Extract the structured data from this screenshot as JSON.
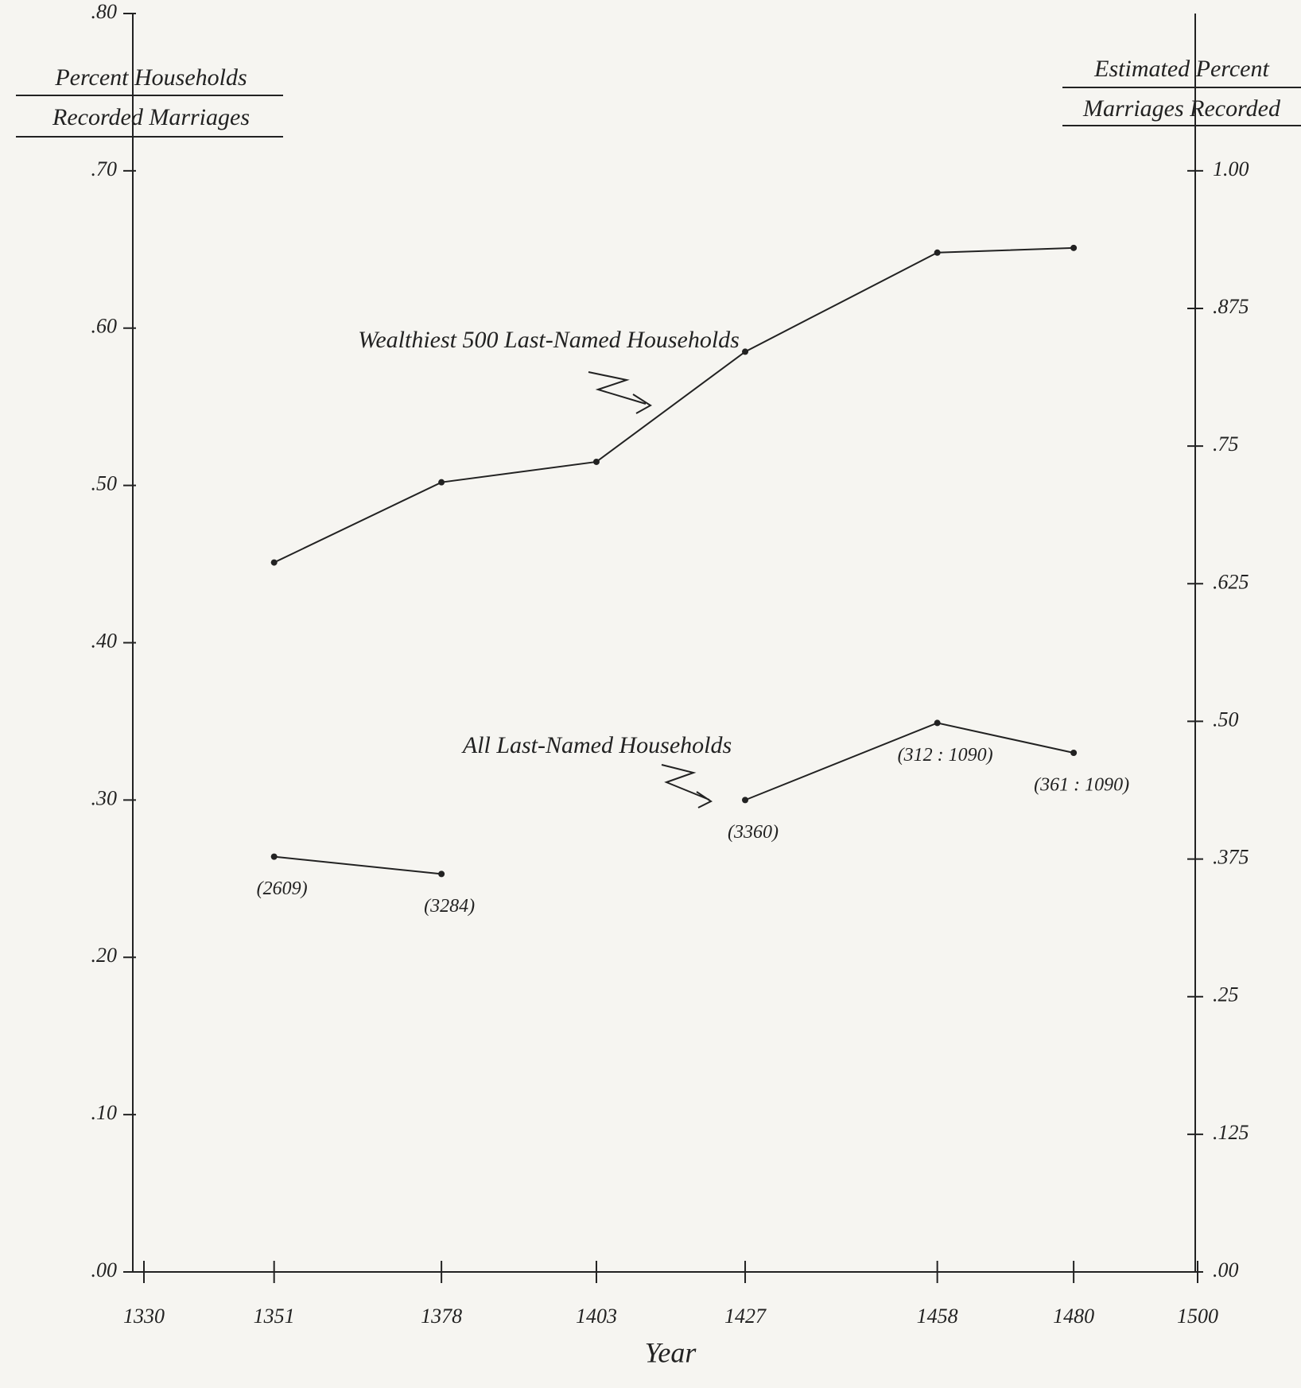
{
  "chart_data": {
    "type": "line",
    "xlabel": "Year",
    "ylabel": [
      "Percent Households",
      "Recorded Marriages"
    ],
    "y2label": [
      "Estimated Percent",
      "Marriages Recorded"
    ],
    "x": [
      1351,
      1378,
      1403,
      1427,
      1458,
      1480
    ],
    "series": [
      {
        "name": "Wealthiest 500 Last-Named Households",
        "color": "#222222",
        "values": [
          0.451,
          0.502,
          0.515,
          0.585,
          0.648,
          0.651
        ]
      },
      {
        "name": "All Last-Named Households",
        "color": "#222222",
        "values": [
          0.264,
          0.253,
          null,
          0.3,
          0.349,
          0.33
        ],
        "point_labels": [
          "(2609)",
          "(3284)",
          null,
          "(3360)",
          "(312 : 1090)",
          "(361 : 1090)"
        ]
      }
    ],
    "xlim": [
      1330,
      1500
    ],
    "xticks": [
      1330,
      1351,
      1378,
      1403,
      1427,
      1458,
      1480,
      1500
    ],
    "ylim": [
      0,
      0.8
    ],
    "yticks": [
      {
        "value": 0,
        "label": ".00"
      },
      {
        "value": 0.1,
        "label": ".10"
      },
      {
        "value": 0.2,
        "label": ".20"
      },
      {
        "value": 0.3,
        "label": ".30"
      },
      {
        "value": 0.4,
        "label": ".40"
      },
      {
        "value": 0.5,
        "label": ".50"
      },
      {
        "value": 0.6,
        "label": ".60"
      },
      {
        "value": 0.7,
        "label": ".70"
      },
      {
        "value": 0.8,
        "label": ".80"
      }
    ],
    "y2lim": [
      0,
      1.142857
    ],
    "y2ticks": [
      {
        "value": 0,
        "label": ".00"
      },
      {
        "value": 0.125,
        "label": ".125"
      },
      {
        "value": 0.25,
        "label": ".25"
      },
      {
        "value": 0.375,
        "label": ".375"
      },
      {
        "value": 0.5,
        "label": ".50"
      },
      {
        "value": 0.625,
        "label": ".625"
      },
      {
        "value": 0.75,
        "label": ".75"
      },
      {
        "value": 0.875,
        "label": ".875"
      },
      {
        "value": 1,
        "label": "1.00"
      }
    ],
    "grid": false
  }
}
